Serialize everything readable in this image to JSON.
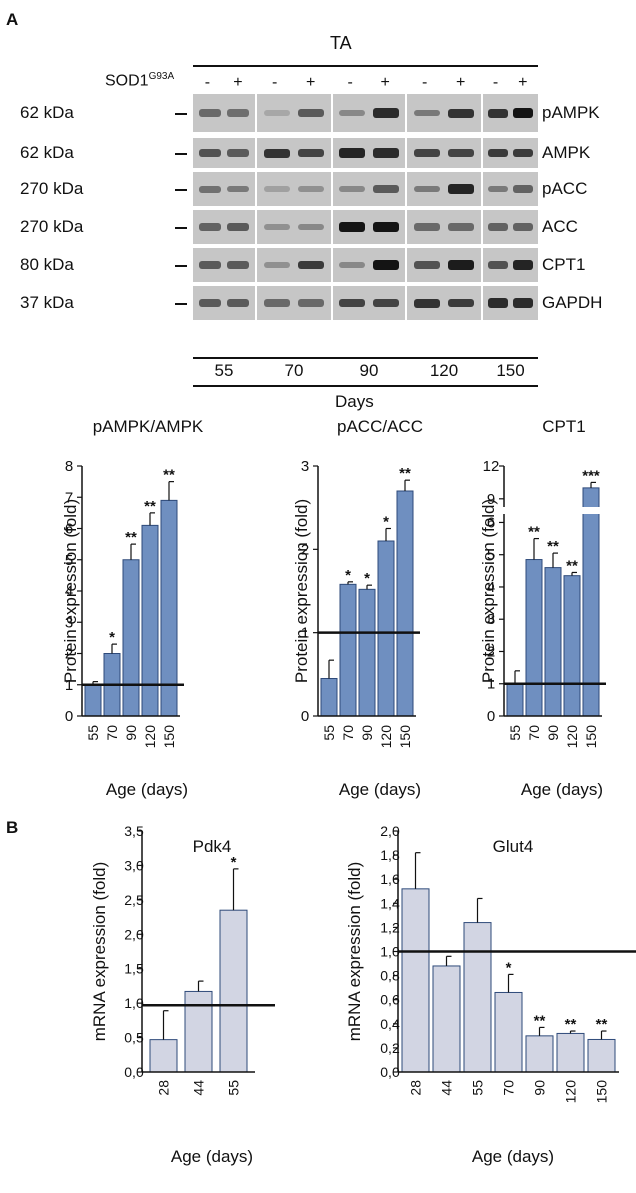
{
  "panel_a": {
    "letter": "A",
    "tissue": "TA",
    "genotype_prefix": "SOD1",
    "genotype_super": "G93A",
    "lane_signs": [
      "-",
      "+",
      "-",
      "+",
      "-",
      "+",
      "-",
      "+",
      "-",
      "+"
    ],
    "bands": [
      {
        "mw": "62 kDa",
        "name": "pAMPK"
      },
      {
        "mw": "62 kDa",
        "name": "AMPK"
      },
      {
        "mw": "270 kDa",
        "name": "pACC"
      },
      {
        "mw": "270 kDa",
        "name": "ACC"
      },
      {
        "mw": "80 kDa",
        "name": "CPT1"
      },
      {
        "mw": "37 kDa",
        "name": "GAPDH"
      }
    ],
    "days": [
      "55",
      "70",
      "90",
      "120",
      "150"
    ],
    "days_label": "Days"
  },
  "panel_b": {
    "letter": "B"
  },
  "band_intensity": [
    [
      [
        0.45,
        0.42
      ],
      [
        0.05,
        0.55
      ],
      [
        0.25,
        0.85
      ],
      [
        0.35,
        0.8
      ],
      [
        0.8,
        1.0
      ]
    ],
    [
      [
        0.6,
        0.55
      ],
      [
        0.8,
        0.7
      ],
      [
        0.9,
        0.85
      ],
      [
        0.7,
        0.7
      ],
      [
        0.75,
        0.75
      ]
    ],
    [
      [
        0.4,
        0.35
      ],
      [
        0.1,
        0.2
      ],
      [
        0.25,
        0.55
      ],
      [
        0.35,
        0.9
      ],
      [
        0.35,
        0.5
      ]
    ],
    [
      [
        0.5,
        0.55
      ],
      [
        0.2,
        0.25
      ],
      [
        1.0,
        1.0
      ],
      [
        0.45,
        0.45
      ],
      [
        0.5,
        0.5
      ]
    ],
    [
      [
        0.55,
        0.55
      ],
      [
        0.2,
        0.75
      ],
      [
        0.25,
        1.0
      ],
      [
        0.6,
        0.95
      ],
      [
        0.6,
        0.9
      ]
    ],
    [
      [
        0.55,
        0.55
      ],
      [
        0.45,
        0.45
      ],
      [
        0.7,
        0.7
      ],
      [
        0.8,
        0.75
      ],
      [
        0.85,
        0.85
      ]
    ]
  ],
  "chart_data": [
    {
      "type": "bar",
      "title": "pAMPK/AMPK",
      "ylabel": "Protein expression (fold)",
      "xlabel": "Age (days)",
      "categories": [
        "55",
        "70",
        "90",
        "120",
        "150"
      ],
      "values": [
        1.0,
        2.0,
        5.0,
        6.1,
        6.9
      ],
      "errors": [
        0.1,
        0.3,
        0.5,
        0.4,
        0.6
      ],
      "significance": [
        "",
        "*",
        "**",
        "**",
        "**"
      ],
      "ylim": [
        0,
        8
      ],
      "yticks": [
        "0",
        "1",
        "2",
        "3",
        "4",
        "5",
        "6",
        "7",
        "8"
      ],
      "reference_line": 1,
      "bar_color": "#6f8fc0"
    },
    {
      "type": "bar",
      "title": "pACC/ACC",
      "ylabel": "Protein expression (fold)",
      "xlabel": "Age (days)",
      "categories": [
        "55",
        "70",
        "90",
        "120",
        "150"
      ],
      "values": [
        0.45,
        1.58,
        1.52,
        2.1,
        2.7
      ],
      "errors": [
        0.22,
        0.03,
        0.05,
        0.15,
        0.13
      ],
      "significance": [
        "",
        "*",
        "*",
        "*",
        "**"
      ],
      "ylim": [
        0,
        3
      ],
      "yticks": [
        "0",
        "1",
        "2",
        "3"
      ],
      "reference_line": 1,
      "bar_color": "#6f8fc0"
    },
    {
      "type": "bar",
      "title": "CPT1",
      "ylabel": "Protein expression (fold)",
      "xlabel": "Age (days)",
      "categories": [
        "55",
        "70",
        "90",
        "120",
        "150"
      ],
      "values": [
        1.0,
        4.85,
        4.6,
        4.35,
        10
      ],
      "errors": [
        0.4,
        0.65,
        0.45,
        0.1,
        0.5
      ],
      "significance": [
        "",
        "**",
        "**",
        "**",
        "***"
      ],
      "ylim": [
        0,
        12
      ],
      "axis_break": [
        6.2,
        8.8
      ],
      "yticks": [
        "0",
        "1",
        "2",
        "3",
        "4",
        "5",
        "6",
        "9",
        "12"
      ],
      "reference_line": 1,
      "bar_color": "#6f8fc0"
    },
    {
      "type": "bar",
      "title": "Pdk4",
      "ylabel": "mRNA expression (fold)",
      "xlabel": "Age (days)",
      "categories": [
        "28",
        "44",
        "55"
      ],
      "values": [
        0.47,
        1.17,
        2.35
      ],
      "errors": [
        0.42,
        0.15,
        0.6
      ],
      "significance": [
        "",
        "",
        "*"
      ],
      "ylim": [
        0,
        3.5
      ],
      "yticks": [
        "0,0",
        "0,5",
        "1,0",
        "1,5",
        "2,0",
        "2,5",
        "3,0",
        "3,5"
      ],
      "reference_line": 0.97,
      "bar_color": "#d2d5e3"
    },
    {
      "type": "bar",
      "title": "Glut4",
      "ylabel": "mRNA expression (fold)",
      "xlabel": "Age (days)",
      "categories": [
        "28",
        "44",
        "55",
        "70",
        "90",
        "120",
        "150"
      ],
      "values": [
        1.52,
        0.88,
        1.24,
        0.66,
        0.3,
        0.32,
        0.27
      ],
      "errors": [
        0.3,
        0.08,
        0.2,
        0.15,
        0.07,
        0.02,
        0.07
      ],
      "significance": [
        "",
        "",
        "",
        "*",
        "**",
        "**",
        "**"
      ],
      "ylim": [
        0,
        2.0
      ],
      "yticks": [
        "0,0",
        "0,2",
        "0,4",
        "0,6",
        "0,8",
        "1,0",
        "1,2",
        "1,4",
        "1,6",
        "1,8",
        "2,0"
      ],
      "reference_line": 1.0,
      "bar_color": "#d2d5e3"
    }
  ]
}
